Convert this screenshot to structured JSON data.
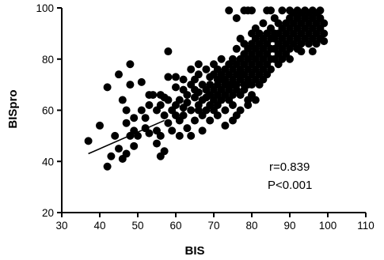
{
  "chart_data": {
    "type": "scatter",
    "title": "",
    "xlabel": "BIS",
    "ylabel": "BISpro",
    "xlim": [
      30,
      110
    ],
    "ylim": [
      20,
      100
    ],
    "xticks": [
      30,
      40,
      50,
      60,
      70,
      80,
      90,
      100,
      110
    ],
    "yticks": [
      20,
      40,
      60,
      80,
      100
    ],
    "grid": false,
    "annotations": [
      "r=0.839",
      "P<0.001"
    ],
    "fit_line": {
      "x": [
        37,
        57
      ],
      "y": [
        43,
        56
      ]
    },
    "points": [
      [
        37,
        48
      ],
      [
        40,
        54
      ],
      [
        42,
        38
      ],
      [
        42,
        69
      ],
      [
        43,
        42
      ],
      [
        44,
        50
      ],
      [
        45,
        45
      ],
      [
        45,
        74
      ],
      [
        46,
        41
      ],
      [
        46,
        64
      ],
      [
        47,
        55
      ],
      [
        47,
        43
      ],
      [
        47,
        60
      ],
      [
        48,
        50
      ],
      [
        48,
        78
      ],
      [
        48,
        70
      ],
      [
        49,
        52
      ],
      [
        49,
        46
      ],
      [
        49,
        57
      ],
      [
        50,
        50
      ],
      [
        51,
        60
      ],
      [
        51,
        71
      ],
      [
        52,
        53
      ],
      [
        52,
        57
      ],
      [
        53,
        66
      ],
      [
        53,
        51
      ],
      [
        53,
        62
      ],
      [
        54,
        66
      ],
      [
        55,
        47
      ],
      [
        55,
        52
      ],
      [
        55,
        60
      ],
      [
        56,
        62
      ],
      [
        56,
        42
      ],
      [
        56,
        50
      ],
      [
        57,
        44
      ],
      [
        57,
        58
      ],
      [
        57,
        65
      ],
      [
        58,
        55
      ],
      [
        58,
        73
      ],
      [
        58,
        83
      ],
      [
        59,
        60
      ],
      [
        59,
        52
      ],
      [
        60,
        58
      ],
      [
        60,
        62
      ],
      [
        60,
        69
      ],
      [
        61,
        56
      ],
      [
        61,
        64
      ],
      [
        61,
        50
      ],
      [
        62,
        61
      ],
      [
        62,
        72
      ],
      [
        62,
        58
      ],
      [
        63,
        53
      ],
      [
        63,
        66
      ],
      [
        63,
        63
      ],
      [
        64,
        60
      ],
      [
        64,
        70
      ],
      [
        64,
        50
      ],
      [
        65,
        65
      ],
      [
        65,
        68
      ],
      [
        65,
        56
      ],
      [
        65,
        72
      ],
      [
        66,
        62
      ],
      [
        66,
        74
      ],
      [
        66,
        60
      ],
      [
        66,
        67
      ],
      [
        67,
        64
      ],
      [
        67,
        70
      ],
      [
        67,
        58
      ],
      [
        68,
        68
      ],
      [
        68,
        76
      ],
      [
        68,
        60
      ],
      [
        68,
        65
      ],
      [
        69,
        70
      ],
      [
        69,
        62
      ],
      [
        69,
        73
      ],
      [
        69,
        66
      ],
      [
        70,
        68
      ],
      [
        70,
        74
      ],
      [
        70,
        64
      ],
      [
        70,
        60
      ],
      [
        70,
        78
      ],
      [
        71,
        70
      ],
      [
        71,
        66
      ],
      [
        71,
        72
      ],
      [
        71,
        62
      ],
      [
        71,
        76
      ],
      [
        72,
        68
      ],
      [
        72,
        72
      ],
      [
        72,
        74
      ],
      [
        72,
        64
      ],
      [
        72,
        80
      ],
      [
        73,
        70
      ],
      [
        73,
        66
      ],
      [
        73,
        76
      ],
      [
        73,
        72
      ],
      [
        73,
        60
      ],
      [
        74,
        74
      ],
      [
        74,
        70
      ],
      [
        74,
        78
      ],
      [
        74,
        68
      ],
      [
        74,
        64
      ],
      [
        75,
        72
      ],
      [
        75,
        76
      ],
      [
        75,
        66
      ],
      [
        75,
        80
      ],
      [
        75,
        70
      ],
      [
        75,
        62
      ],
      [
        76,
        74
      ],
      [
        76,
        78
      ],
      [
        76,
        70
      ],
      [
        76,
        68
      ],
      [
        76,
        84
      ],
      [
        76,
        58
      ],
      [
        77,
        72
      ],
      [
        77,
        76
      ],
      [
        77,
        80
      ],
      [
        77,
        66
      ],
      [
        77,
        74
      ],
      [
        77,
        88
      ],
      [
        78,
        74
      ],
      [
        78,
        78
      ],
      [
        78,
        70
      ],
      [
        78,
        82
      ],
      [
        78,
        68
      ],
      [
        78,
        99
      ],
      [
        78,
        86
      ],
      [
        79,
        76
      ],
      [
        79,
        72
      ],
      [
        79,
        80
      ],
      [
        79,
        84
      ],
      [
        79,
        70
      ],
      [
        79,
        99
      ],
      [
        79,
        64
      ],
      [
        80,
        78
      ],
      [
        80,
        74
      ],
      [
        80,
        82
      ],
      [
        80,
        86
      ],
      [
        80,
        70
      ],
      [
        80,
        90
      ],
      [
        80,
        99
      ],
      [
        80,
        66
      ],
      [
        81,
        80
      ],
      [
        81,
        76
      ],
      [
        81,
        84
      ],
      [
        81,
        72
      ],
      [
        81,
        88
      ],
      [
        81,
        92
      ],
      [
        82,
        78
      ],
      [
        82,
        82
      ],
      [
        82,
        74
      ],
      [
        82,
        86
      ],
      [
        82,
        90
      ],
      [
        82,
        70
      ],
      [
        83,
        80
      ],
      [
        83,
        84
      ],
      [
        83,
        76
      ],
      [
        83,
        88
      ],
      [
        83,
        72
      ],
      [
        83,
        94
      ],
      [
        84,
        82
      ],
      [
        84,
        86
      ],
      [
        84,
        78
      ],
      [
        84,
        90
      ],
      [
        84,
        74
      ],
      [
        85,
        84
      ],
      [
        85,
        80
      ],
      [
        85,
        88
      ],
      [
        85,
        92
      ],
      [
        85,
        76
      ],
      [
        85,
        99
      ],
      [
        86,
        84
      ],
      [
        86,
        88
      ],
      [
        86,
        80
      ],
      [
        86,
        90
      ],
      [
        87,
        86
      ],
      [
        87,
        82
      ],
      [
        87,
        90
      ],
      [
        87,
        94
      ],
      [
        88,
        88
      ],
      [
        88,
        84
      ],
      [
        88,
        92
      ],
      [
        88,
        80
      ],
      [
        89,
        86
      ],
      [
        89,
        90
      ],
      [
        89,
        94
      ],
      [
        89,
        82
      ],
      [
        90,
        88
      ],
      [
        90,
        92
      ],
      [
        90,
        84
      ],
      [
        90,
        96
      ],
      [
        90,
        99
      ],
      [
        91,
        90
      ],
      [
        91,
        86
      ],
      [
        91,
        94
      ],
      [
        91,
        98
      ],
      [
        92,
        88
      ],
      [
        92,
        92
      ],
      [
        92,
        96
      ],
      [
        92,
        84
      ],
      [
        93,
        90
      ],
      [
        93,
        94
      ],
      [
        93,
        98
      ],
      [
        93,
        86
      ],
      [
        94,
        92
      ],
      [
        94,
        88
      ],
      [
        94,
        96
      ],
      [
        94,
        99
      ],
      [
        95,
        90
      ],
      [
        95,
        94
      ],
      [
        95,
        98
      ],
      [
        95,
        86
      ],
      [
        96,
        92
      ],
      [
        96,
        96
      ],
      [
        96,
        88
      ],
      [
        96,
        99
      ],
      [
        97,
        94
      ],
      [
        97,
        90
      ],
      [
        97,
        98
      ],
      [
        97,
        86
      ],
      [
        98,
        92
      ],
      [
        98,
        96
      ],
      [
        98,
        88
      ],
      [
        98,
        99
      ],
      [
        99,
        90
      ],
      [
        99,
        94
      ],
      [
        99,
        87
      ],
      [
        56,
        66
      ],
      [
        58,
        64
      ],
      [
        60,
        73
      ],
      [
        62,
        68
      ],
      [
        64,
        76
      ],
      [
        66,
        78
      ],
      [
        67,
        52
      ],
      [
        69,
        56
      ],
      [
        71,
        58
      ],
      [
        73,
        54
      ],
      [
        75,
        56
      ],
      [
        77,
        60
      ],
      [
        79,
        62
      ],
      [
        81,
        64
      ],
      [
        74,
        99
      ],
      [
        76,
        96
      ],
      [
        84,
        99
      ],
      [
        86,
        96
      ],
      [
        88,
        99
      ],
      [
        92,
        99
      ],
      [
        96,
        83
      ],
      [
        93,
        83
      ],
      [
        90,
        80
      ],
      [
        87,
        78
      ]
    ]
  }
}
